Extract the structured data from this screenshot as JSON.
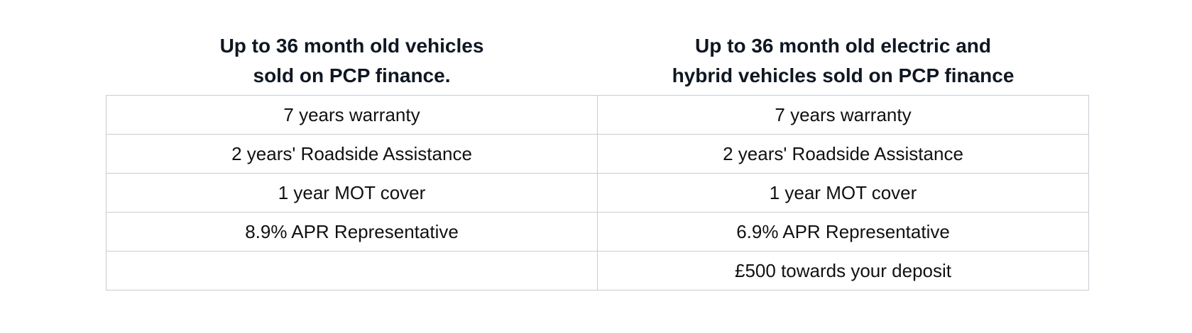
{
  "columns": [
    {
      "heading_line1": "Up to 36 month old vehicles",
      "heading_line2": "sold on PCP finance."
    },
    {
      "heading_line1": "Up to 36 month old electric and",
      "heading_line2": "hybrid vehicles sold on PCP finance"
    }
  ],
  "rows": [
    [
      "7 years warranty",
      "7 years warranty"
    ],
    [
      "2 years' Roadside Assistance",
      "2 years' Roadside Assistance"
    ],
    [
      "1 year MOT cover",
      "1 year MOT cover"
    ],
    [
      "8.9% APR Representative",
      "6.9% APR Representative"
    ],
    [
      "",
      "£500 towards your deposit"
    ]
  ]
}
